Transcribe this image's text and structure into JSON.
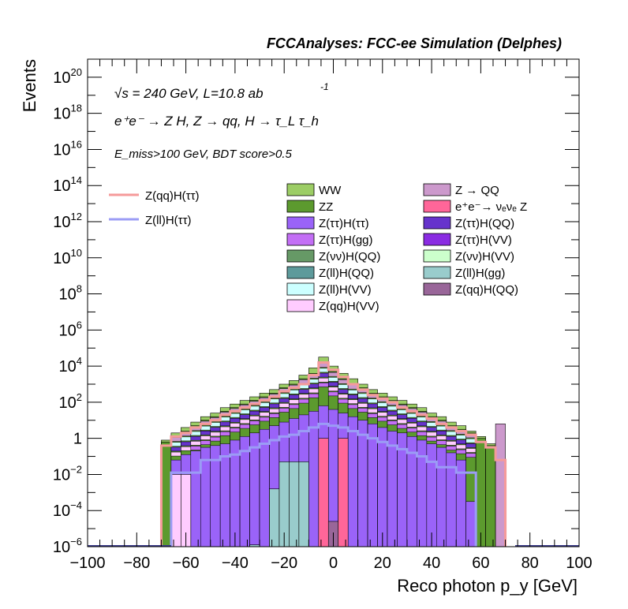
{
  "header": {
    "title": "FCCAnalyses: FCC-ee Simulation (Delphes)"
  },
  "annotations": {
    "line1_sqrt": "√s = 240 GeV, L=10.8 ab",
    "line1_sup": "-1",
    "line2": "e⁺e⁻ → Z H, Z → qq, H → τ_L τ_h",
    "line3": "E_miss>100 GeV, BDT score>0.5"
  },
  "legend": {
    "signals": [
      {
        "label": "Z(qq)H(ττ)",
        "color": "#f59a9a"
      },
      {
        "label": "Z(ll)H(ττ)",
        "color": "#9b9cf5"
      }
    ],
    "backgrounds_col1": [
      {
        "label": "WW",
        "color": "#9ccd65"
      },
      {
        "label": "ZZ",
        "color": "#5c9a2e"
      },
      {
        "label": "Z(ττ)H(ττ)",
        "color": "#9a63f8"
      },
      {
        "label": "Z(ττ)H(gg)",
        "color": "#c36ef5"
      },
      {
        "label": "Z(νν)H(QQ)",
        "color": "#669966"
      },
      {
        "label": "Z(ll)H(QQ)",
        "color": "#5d9a9b"
      },
      {
        "label": "Z(ll)H(VV)",
        "color": "#ccffff"
      },
      {
        "label": "Z(qq)H(VV)",
        "color": "#ffccff"
      }
    ],
    "backgrounds_col2": [
      {
        "label": "Z → QQ",
        "color": "#cc99cc"
      },
      {
        "label": "e⁺e⁻→ νₑνₑ Z",
        "color": "#ff6699"
      },
      {
        "label": "Z(ττ)H(QQ)",
        "color": "#6633cc"
      },
      {
        "label": "Z(ττ)H(VV)",
        "color": "#8a2be2"
      },
      {
        "label": "Z(νν)H(VV)",
        "color": "#ccffcc"
      },
      {
        "label": "Z(ll)H(gg)",
        "color": "#99cccc"
      },
      {
        "label": "Z(qq)H(QQ)",
        "color": "#996699"
      }
    ]
  },
  "chart_data": {
    "type": "histogram-stack",
    "title": "FCCAnalyses: FCC-ee Simulation (Delphes)",
    "xlabel": "Reco photon p_y [GeV]",
    "ylabel": "Events",
    "xlim": [
      -100,
      100
    ],
    "ylim_log10": [
      -6,
      21
    ],
    "yscale": "log",
    "x_tick_labels": [
      "−100",
      "−80",
      "−60",
      "−40",
      "−20",
      "0",
      "20",
      "40",
      "60",
      "80",
      "100"
    ],
    "y_tick_labels": [
      {
        "base": "10",
        "exp": "−6"
      },
      {
        "base": "10",
        "exp": "−4"
      },
      {
        "base": "10",
        "exp": "−2"
      },
      {
        "base": "1",
        "exp": ""
      },
      {
        "base": "10",
        "exp": "2"
      },
      {
        "base": "10",
        "exp": "4"
      },
      {
        "base": "10",
        "exp": "6"
      },
      {
        "base": "10",
        "exp": "8"
      },
      {
        "base": "10",
        "exp": "10"
      },
      {
        "base": "10",
        "exp": "12"
      },
      {
        "base": "10",
        "exp": "14"
      },
      {
        "base": "10",
        "exp": "16"
      },
      {
        "base": "10",
        "exp": "18"
      },
      {
        "base": "10",
        "exp": "20"
      }
    ],
    "bin_edges": [
      -70,
      -66,
      -62,
      -58,
      -54,
      -50,
      -46,
      -42,
      -38,
      -34,
      -30,
      -26,
      -22,
      -18,
      -14,
      -10,
      -6,
      -2,
      2,
      6,
      10,
      14,
      18,
      22,
      26,
      30,
      34,
      38,
      42,
      46,
      50,
      54,
      58,
      62,
      66,
      70,
      74
    ],
    "stack_totals_log10": [
      -0.1,
      0.3,
      0.6,
      0.9,
      1.2,
      1.4,
      1.7,
      1.9,
      2.1,
      2.3,
      2.5,
      2.7,
      3.0,
      3.2,
      3.5,
      3.9,
      4.5,
      4.0,
      3.6,
      3.3,
      3.0,
      2.7,
      2.5,
      2.3,
      2.1,
      1.9,
      1.7,
      1.4,
      1.2,
      0.9,
      0.7,
      0.4,
      0.1,
      -0.3,
      0.8
    ],
    "zz_top_log10": [
      -0.2,
      0.1,
      0.4,
      0.7,
      1.0,
      1.2,
      1.5,
      1.7,
      1.9,
      2.1,
      2.3,
      2.5,
      2.8,
      3.0,
      3.3,
      3.6,
      4.2,
      3.7,
      3.3,
      3.0,
      2.8,
      2.5,
      2.3,
      2.1,
      1.9,
      1.7,
      1.5,
      1.2,
      1.0,
      0.7,
      0.5,
      0.3,
      0.0,
      -0.4,
      null
    ],
    "signal_band_top_log10": [
      null,
      -1.2,
      -0.9,
      -0.7,
      -0.5,
      -0.4,
      -0.3,
      -0.1,
      0.1,
      0.3,
      0.5,
      0.7,
      0.9,
      1.1,
      1.3,
      1.5,
      1.8,
      1.6,
      1.4,
      1.2,
      1.0,
      0.8,
      0.6,
      0.4,
      0.3,
      0.1,
      -0.1,
      -0.3,
      -0.5,
      -0.8,
      -1.2,
      -3.5,
      null,
      null,
      null
    ],
    "series": [
      {
        "name": "Z(qq)H(ττ)",
        "style": "line",
        "values_log10": [
          -0.4,
          0.1,
          0.3,
          0.6,
          0.8,
          1.0,
          1.3,
          1.5,
          1.7,
          1.9,
          2.1,
          2.3,
          2.6,
          2.8,
          3.0,
          3.5,
          4.2,
          3.8,
          3.4,
          3.0,
          2.7,
          2.4,
          2.2,
          2.0,
          1.7,
          1.5,
          1.3,
          1.1,
          0.8,
          0.6,
          0.4,
          0.2,
          -0.2,
          -0.5,
          -1.2
        ]
      },
      {
        "name": "Z(ll)H(ττ)",
        "style": "line",
        "values_log10": [
          null,
          -1.9,
          -1.9,
          -1.9,
          -1.2,
          -1.2,
          -1.0,
          -0.9,
          -0.7,
          -0.5,
          -0.3,
          -0.1,
          0.1,
          0.2,
          0.4,
          0.6,
          0.8,
          0.7,
          0.6,
          0.4,
          0.2,
          0.0,
          -0.2,
          -0.4,
          -0.6,
          -0.8,
          -1.0,
          -1.3,
          -1.6,
          -1.6,
          -1.9,
          -1.9,
          null,
          null,
          null
        ]
      }
    ],
    "grid": false,
    "legend_placement": "upper-right"
  }
}
